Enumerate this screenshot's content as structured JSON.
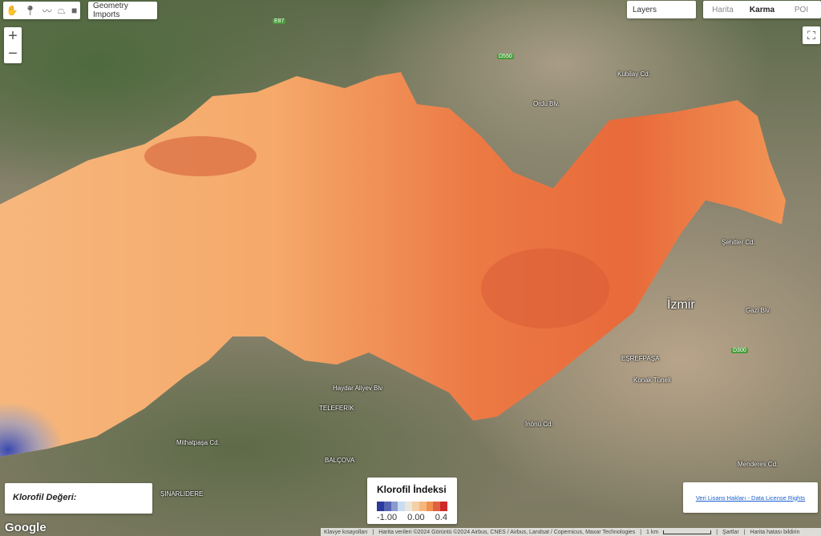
{
  "toolbar": {
    "tools": [
      "hand-icon",
      "marker-icon",
      "line-icon",
      "polygon-icon",
      "rectangle-icon"
    ],
    "geometry_imports": "Geometry Imports"
  },
  "zoom": {
    "in": "+",
    "out": "−"
  },
  "layers": "Layers",
  "map_types": [
    {
      "label": "Harita",
      "selected": false
    },
    {
      "label": "Karma",
      "selected": true
    },
    {
      "label": "POI",
      "selected": false
    }
  ],
  "value_panel": {
    "label": "Klorofil Değeri:"
  },
  "legend": {
    "title": "Klorofil İndeksi",
    "ticks": [
      "-1.00",
      "0.00",
      "0.4"
    ],
    "colors": [
      "#2b3a9c",
      "#5565b2",
      "#8c9acd",
      "#cadcef",
      "#ebe6dd",
      "#f4d0a6",
      "#f6b77d",
      "#f0914f",
      "#df6140",
      "#cf2a2a"
    ]
  },
  "license_link": "Veri Lisans Hakları - Data License Rights",
  "logo": "Google",
  "attribution": {
    "shortcuts": "Klavye kısayolları",
    "data": "Harita verileri ©2024 Görüntü ©2024 Airbus, CNES / Airbus, Landsat / Copernicus, Maxar Technologies",
    "scale": "1 km",
    "terms": "Şartlar",
    "report": "Harita hatası bildirin"
  },
  "map_labels": {
    "city": "İzmir",
    "eşrefpaşa": "EŞREFPAŞA",
    "teleferik": "TELEFERİK",
    "balcova": "BALÇOVA",
    "narlidere": "ŞINARLIDERE",
    "haydar": "Haydar Aliyev Blv",
    "mithatpasa": "Mithatpaşa Cd.",
    "inonu": "İnönü Cd.",
    "sehitler": "Şehitler Cd.",
    "gazi": "Gazi Blv.",
    "konak": "Konak Tüneli",
    "menderes": "Menderes Cd.",
    "kubilay": "Kubilay Cd.",
    "ordu": "Ordu Blv."
  },
  "road_shields": {
    "e87": "E87",
    "d550": "D550",
    "d300": "D300"
  }
}
